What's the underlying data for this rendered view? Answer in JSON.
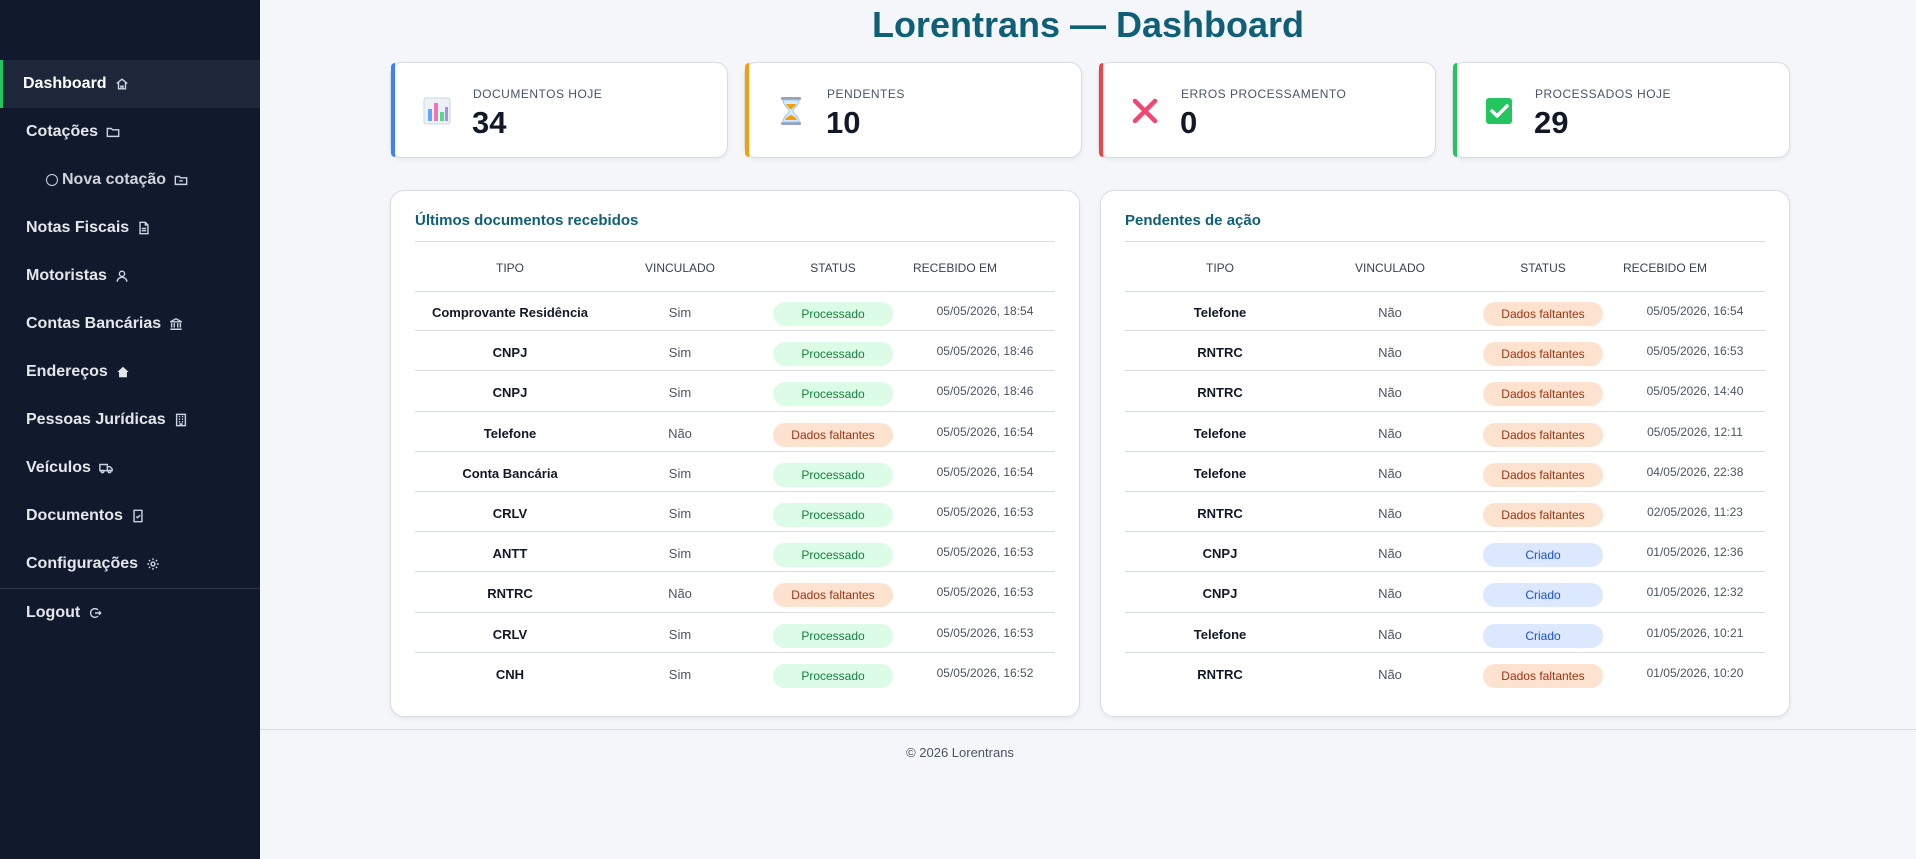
{
  "sidebar": {
    "items": [
      {
        "label": "Dashboard",
        "icon": "home-icon",
        "active": true
      },
      {
        "label": "Cotações",
        "icon": "folder-icon"
      },
      {
        "label": "Nova cotação",
        "icon": "folder-icon",
        "sub": true
      },
      {
        "label": "Notas Fiscais",
        "icon": "file-icon"
      },
      {
        "label": "Motoristas",
        "icon": "user-icon"
      },
      {
        "label": "Contas Bancárias",
        "icon": "bank-icon"
      },
      {
        "label": "Endereços",
        "icon": "house-icon"
      },
      {
        "label": "Pessoas Jurídicas",
        "icon": "building-icon"
      },
      {
        "label": "Veículos",
        "icon": "truck-icon"
      },
      {
        "label": "Documentos",
        "icon": "file-check-icon"
      },
      {
        "label": "Configurações",
        "icon": "gear-icon"
      }
    ],
    "logout": {
      "label": "Logout",
      "icon": "logout-icon"
    }
  },
  "page": {
    "title": "Lorentrans — Dashboard"
  },
  "stats": [
    {
      "label": "DOCUMENTOS HOJE",
      "value": "34",
      "icon": "bar-chart-icon",
      "color": "#3b82f6"
    },
    {
      "label": "PENDENTES",
      "value": "10",
      "icon": "hourglass-icon",
      "color": "#f59e0b"
    },
    {
      "label": "ERROS PROCESSAMENTO",
      "value": "0",
      "icon": "cross-icon",
      "color": "#ef4444"
    },
    {
      "label": "PROCESSADOS HOJE",
      "value": "29",
      "icon": "check-box-icon",
      "color": "#22c55e"
    }
  ],
  "recent": {
    "title": "Últimos documentos recebidos",
    "columns": [
      "TIPO",
      "VINCULADO",
      "STATUS",
      "RECEBIDO EM"
    ],
    "rows": [
      {
        "tipo": "Comprovante Residência",
        "vinculado": "Sim",
        "status": "Processado",
        "recebido": "05/05/2026, 18:54"
      },
      {
        "tipo": "CNPJ",
        "vinculado": "Sim",
        "status": "Processado",
        "recebido": "05/05/2026, 18:46"
      },
      {
        "tipo": "CNPJ",
        "vinculado": "Sim",
        "status": "Processado",
        "recebido": "05/05/2026, 18:46"
      },
      {
        "tipo": "Telefone",
        "vinculado": "Não",
        "status": "Dados faltantes",
        "recebido": "05/05/2026, 16:54"
      },
      {
        "tipo": "Conta Bancária",
        "vinculado": "Sim",
        "status": "Processado",
        "recebido": "05/05/2026, 16:54"
      },
      {
        "tipo": "CRLV",
        "vinculado": "Sim",
        "status": "Processado",
        "recebido": "05/05/2026, 16:53"
      },
      {
        "tipo": "ANTT",
        "vinculado": "Sim",
        "status": "Processado",
        "recebido": "05/05/2026, 16:53"
      },
      {
        "tipo": "RNTRC",
        "vinculado": "Não",
        "status": "Dados faltantes",
        "recebido": "05/05/2026, 16:53"
      },
      {
        "tipo": "CRLV",
        "vinculado": "Sim",
        "status": "Processado",
        "recebido": "05/05/2026, 16:53"
      },
      {
        "tipo": "CNH",
        "vinculado": "Sim",
        "status": "Processado",
        "recebido": "05/05/2026, 16:52"
      }
    ]
  },
  "pending": {
    "title": "Pendentes de ação",
    "columns": [
      "TIPO",
      "VINCULADO",
      "STATUS",
      "RECEBIDO EM"
    ],
    "rows": [
      {
        "tipo": "Telefone",
        "vinculado": "Não",
        "status": "Dados faltantes",
        "recebido": "05/05/2026, 16:54"
      },
      {
        "tipo": "RNTRC",
        "vinculado": "Não",
        "status": "Dados faltantes",
        "recebido": "05/05/2026, 16:53"
      },
      {
        "tipo": "RNTRC",
        "vinculado": "Não",
        "status": "Dados faltantes",
        "recebido": "05/05/2026, 14:40"
      },
      {
        "tipo": "Telefone",
        "vinculado": "Não",
        "status": "Dados faltantes",
        "recebido": "05/05/2026, 12:11"
      },
      {
        "tipo": "Telefone",
        "vinculado": "Não",
        "status": "Dados faltantes",
        "recebido": "04/05/2026, 22:38"
      },
      {
        "tipo": "RNTRC",
        "vinculado": "Não",
        "status": "Dados faltantes",
        "recebido": "02/05/2026, 11:23"
      },
      {
        "tipo": "CNPJ",
        "vinculado": "Não",
        "status": "Criado",
        "recebido": "01/05/2026, 12:36"
      },
      {
        "tipo": "CNPJ",
        "vinculado": "Não",
        "status": "Criado",
        "recebido": "01/05/2026, 12:32"
      },
      {
        "tipo": "Telefone",
        "vinculado": "Não",
        "status": "Criado",
        "recebido": "01/05/2026, 10:21"
      },
      {
        "tipo": "RNTRC",
        "vinculado": "Não",
        "status": "Dados faltantes",
        "recebido": "01/05/2026, 10:20"
      }
    ]
  },
  "footer": {
    "text": "© 2026 Lorentrans"
  }
}
